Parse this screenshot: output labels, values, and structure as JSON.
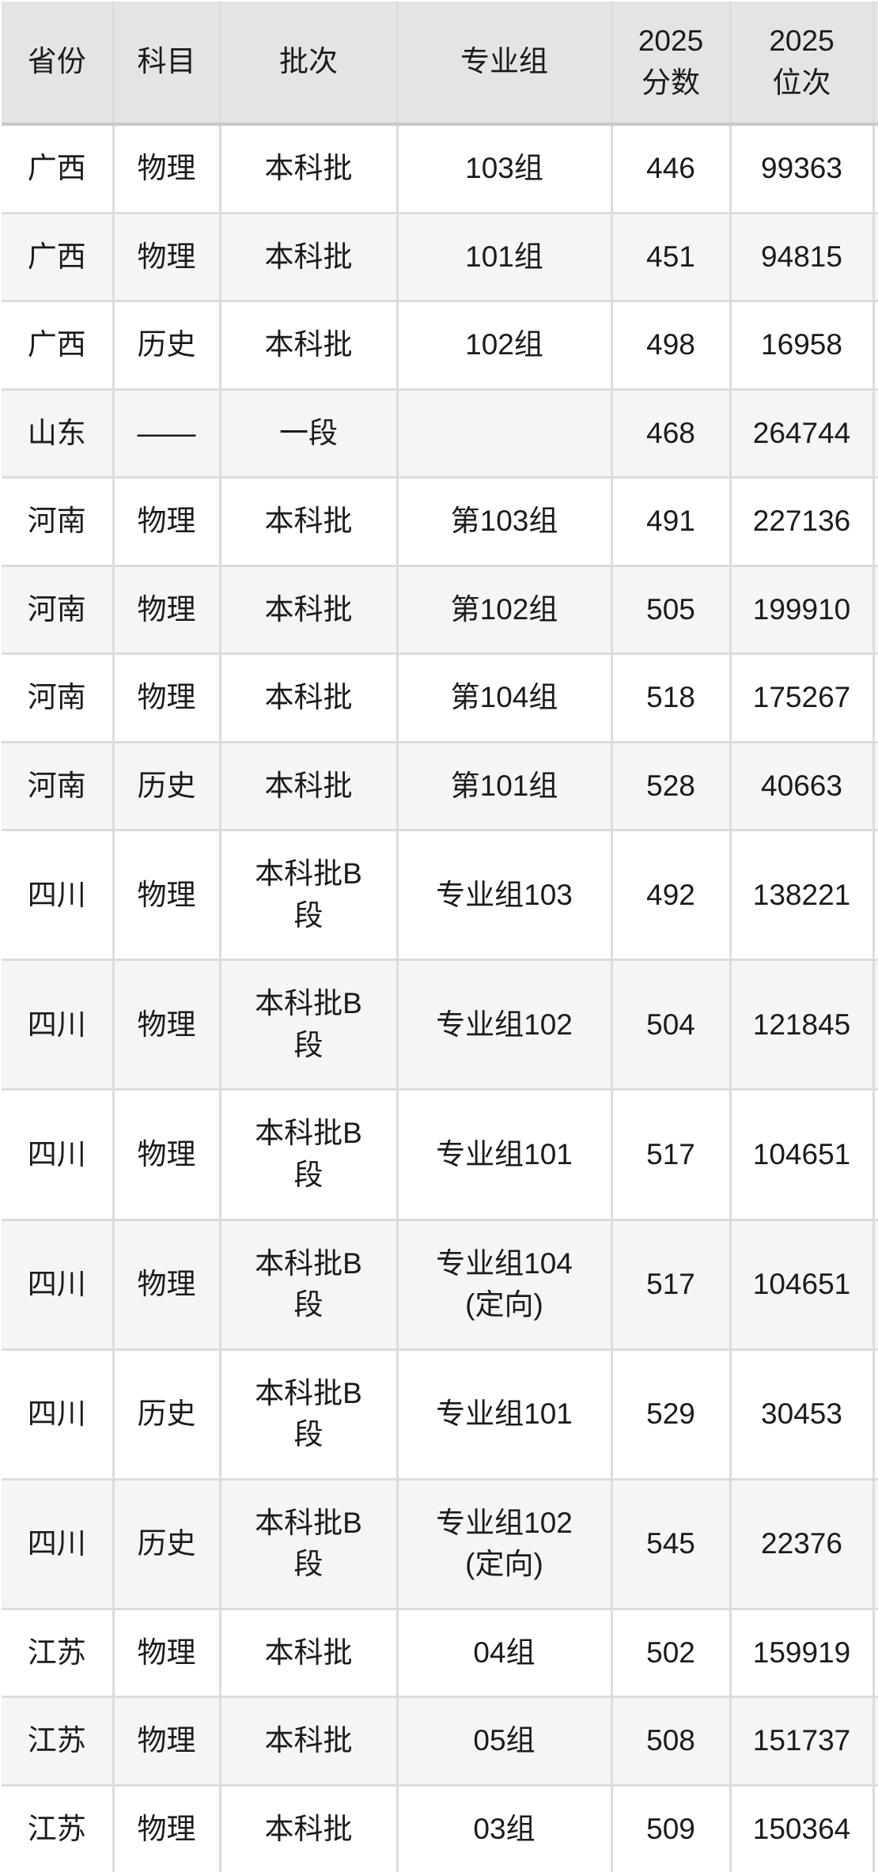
{
  "colors": {
    "header_bg": "#e4e4e4",
    "row_bg": "#ffffff",
    "row_alt_bg": "#f5f5f6",
    "divider": "#dcdcdc",
    "header_divider": "#c9c9c9",
    "text": "#1b1b1b"
  },
  "chart_data": {
    "type": "table",
    "title": "",
    "legend_position": "none",
    "grid": "on",
    "columns": [
      {
        "key": "province",
        "label": "省份"
      },
      {
        "key": "subject",
        "label": "科目"
      },
      {
        "key": "batch",
        "label": "批次"
      },
      {
        "key": "group",
        "label": "专业组"
      },
      {
        "key": "score2025",
        "label": "2025\n分数"
      },
      {
        "key": "rank2025",
        "label": "2025\n位次"
      }
    ],
    "rows": [
      [
        "广西",
        "物理",
        "本科批",
        "103组",
        "446",
        "99363"
      ],
      [
        "广西",
        "物理",
        "本科批",
        "101组",
        "451",
        "94815"
      ],
      [
        "广西",
        "历史",
        "本科批",
        "102组",
        "498",
        "16958"
      ],
      [
        "山东",
        "——",
        "一段",
        "",
        "468",
        "264744"
      ],
      [
        "河南",
        "物理",
        "本科批",
        "第103组",
        "491",
        "227136"
      ],
      [
        "河南",
        "物理",
        "本科批",
        "第102组",
        "505",
        "199910"
      ],
      [
        "河南",
        "物理",
        "本科批",
        "第104组",
        "518",
        "175267"
      ],
      [
        "河南",
        "历史",
        "本科批",
        "第101组",
        "528",
        "40663"
      ],
      [
        "四川",
        "物理",
        "本科批B\n段",
        "专业组103",
        "492",
        "138221"
      ],
      [
        "四川",
        "物理",
        "本科批B\n段",
        "专业组102",
        "504",
        "121845"
      ],
      [
        "四川",
        "物理",
        "本科批B\n段",
        "专业组101",
        "517",
        "104651"
      ],
      [
        "四川",
        "物理",
        "本科批B\n段",
        "专业组104\n(定向)",
        "517",
        "104651"
      ],
      [
        "四川",
        "历史",
        "本科批B\n段",
        "专业组101",
        "529",
        "30453"
      ],
      [
        "四川",
        "历史",
        "本科批B\n段",
        "专业组102\n(定向)",
        "545",
        "22376"
      ],
      [
        "江苏",
        "物理",
        "本科批",
        "04组",
        "502",
        "159919"
      ],
      [
        "江苏",
        "物理",
        "本科批",
        "05组",
        "508",
        "151737"
      ],
      [
        "江苏",
        "物理",
        "本科批",
        "03组",
        "509",
        "150364"
      ]
    ]
  }
}
